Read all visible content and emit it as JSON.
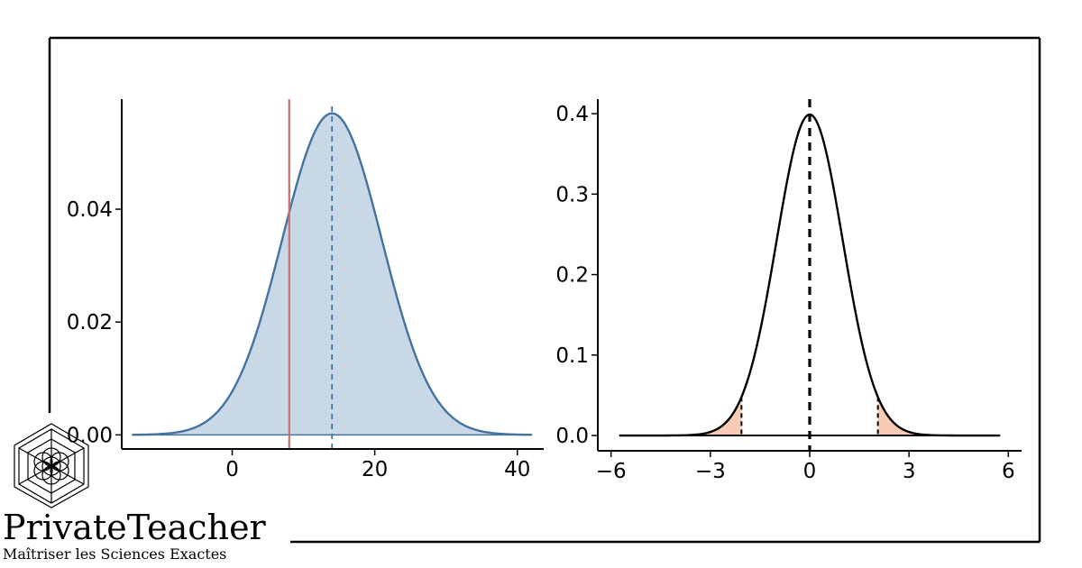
{
  "brand": {
    "name": "PrivateTeacher",
    "tagline": "Maîtriser les Sciences Exactes",
    "logo_icon": "hexagon-flower-icon"
  },
  "colors": {
    "left_fill": "#c9d8e6",
    "left_curve": "#44739d",
    "left_mean_line": "#44739d",
    "left_observed_line": "#c8706a",
    "right_curve": "#000000",
    "right_tail_fill": "#f9cbb5",
    "frame": "#000000"
  },
  "chart_data": [
    {
      "type": "area",
      "title": "",
      "xlabel": "",
      "ylabel": "",
      "distribution": "normal",
      "mean": 14,
      "sd": 7,
      "x_range": [
        -14,
        42
      ],
      "xlim": [
        -15.5,
        43.7
      ],
      "ylim": [
        -0.0025,
        0.0595
      ],
      "x_ticks": [
        0,
        20,
        40
      ],
      "x_tick_labels": [
        "0",
        "20",
        "40"
      ],
      "y_ticks": [
        0.0,
        0.02,
        0.04
      ],
      "y_tick_labels": [
        "0.00",
        "0.02",
        "0.04"
      ],
      "reference_lines": [
        {
          "x": 8,
          "style": "solid",
          "meaning": "observed value"
        },
        {
          "x": 14,
          "style": "dashed",
          "meaning": "mean"
        }
      ],
      "grid": false
    },
    {
      "type": "line",
      "title": "",
      "xlabel": "",
      "ylabel": "",
      "distribution": "standard normal",
      "mean": 0,
      "sd": 1,
      "x_range": [
        -5.75,
        5.75
      ],
      "xlim": [
        -6.4,
        6.4
      ],
      "ylim": [
        -0.019,
        0.418
      ],
      "x_ticks": [
        -6,
        -3,
        0,
        3,
        6
      ],
      "x_tick_labels": [
        "−6",
        "−3",
        "0",
        "3",
        "6"
      ],
      "y_ticks": [
        0.0,
        0.1,
        0.2,
        0.3,
        0.4
      ],
      "y_tick_labels": [
        "0.0",
        "0.1",
        "0.2",
        "0.3",
        "0.4"
      ],
      "shaded_tails": {
        "lower": -2.06,
        "upper": 2.06
      },
      "reference_lines": [
        {
          "x": 0,
          "style": "dashed"
        }
      ],
      "grid": false
    }
  ]
}
